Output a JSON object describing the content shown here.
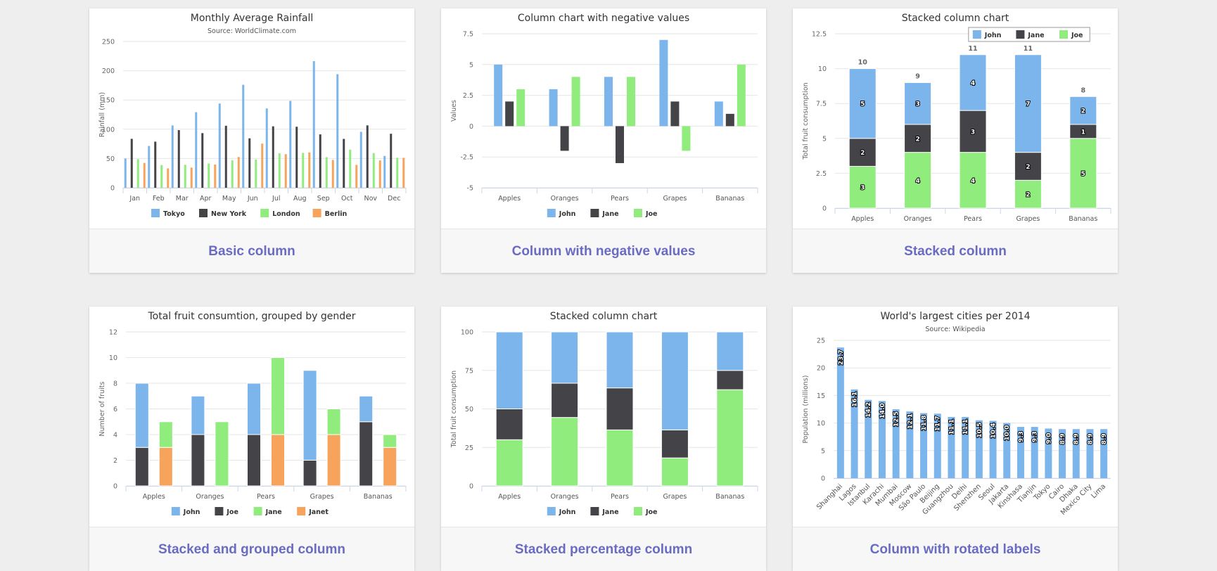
{
  "colors": {
    "blue": "#7cb5ec",
    "dark": "#434348",
    "green": "#90ed7d",
    "orange": "#f7a35c",
    "caption": "#6a6bc2"
  },
  "cards": [
    {
      "caption": "Basic column",
      "chart_data": {
        "type": "bar",
        "title": "Monthly Average Rainfall",
        "subtitle": "Source: WorldClimate.com",
        "ylabel": "Rainfall (mm)",
        "ylim": [
          0,
          250
        ],
        "yticks": [
          "0",
          "50",
          "100",
          "150",
          "200",
          "250"
        ],
        "categories": [
          "Jan",
          "Feb",
          "Mar",
          "Apr",
          "May",
          "Jun",
          "Jul",
          "Aug",
          "Sep",
          "Oct",
          "Nov",
          "Dec"
        ],
        "legend": "bottom-center",
        "series": [
          {
            "name": "Tokyo",
            "color": "#7cb5ec",
            "values": [
              49.9,
              71.5,
              106.4,
              129.2,
              144.0,
              176.0,
              135.6,
              148.5,
              216.4,
              194.1,
              95.6,
              54.4
            ]
          },
          {
            "name": "New York",
            "color": "#434348",
            "values": [
              83.6,
              78.8,
              98.5,
              93.4,
              106.0,
              84.5,
              105.0,
              104.3,
              91.2,
              83.5,
              106.6,
              92.3
            ]
          },
          {
            "name": "London",
            "color": "#90ed7d",
            "values": [
              48.9,
              38.8,
              39.3,
              41.4,
              47.0,
              48.3,
              59.0,
              59.6,
              52.4,
              65.2,
              59.3,
              51.2
            ]
          },
          {
            "name": "Berlin",
            "color": "#f7a35c",
            "values": [
              42.4,
              33.2,
              34.5,
              39.7,
              52.6,
              75.5,
              57.4,
              60.4,
              47.6,
              39.1,
              46.8,
              51.1
            ]
          }
        ]
      }
    },
    {
      "caption": "Column with negative values",
      "chart_data": {
        "type": "bar",
        "title": "Column chart with negative values",
        "ylabel": "Values",
        "ylim": [
          -5,
          7.5
        ],
        "yticks": [
          "-5",
          "-2.5",
          "0",
          "2.5",
          "5",
          "7.5"
        ],
        "categories": [
          "Apples",
          "Oranges",
          "Pears",
          "Grapes",
          "Bananas"
        ],
        "legend": "bottom-center",
        "series": [
          {
            "name": "John",
            "color": "#7cb5ec",
            "values": [
              5,
              3,
              4,
              7,
              2
            ]
          },
          {
            "name": "Jane",
            "color": "#434348",
            "values": [
              2,
              -2,
              -3,
              2,
              1
            ]
          },
          {
            "name": "Joe",
            "color": "#90ed7d",
            "values": [
              3,
              4,
              4,
              -2,
              5
            ]
          }
        ]
      }
    },
    {
      "caption": "Stacked column",
      "chart_data": {
        "type": "bar",
        "stacking": "normal",
        "title": "Stacked column chart",
        "ylabel": "Total fruit consumption",
        "ylim": [
          0,
          12.5
        ],
        "yticks": [
          "0",
          "2.5",
          "5",
          "7.5",
          "10",
          "12.5"
        ],
        "categories": [
          "Apples",
          "Oranges",
          "Pears",
          "Grapes",
          "Bananas"
        ],
        "totals": [
          "10",
          "9",
          "11",
          "11",
          "8"
        ],
        "legend": "top-right",
        "series": [
          {
            "name": "John",
            "color": "#7cb5ec",
            "values": [
              5,
              3,
              4,
              7,
              2
            ]
          },
          {
            "name": "Jane",
            "color": "#434348",
            "values": [
              2,
              2,
              3,
              2,
              1
            ]
          },
          {
            "name": "Joe",
            "color": "#90ed7d",
            "values": [
              3,
              4,
              4,
              2,
              5
            ]
          }
        ]
      }
    },
    {
      "caption": "Stacked and grouped column",
      "chart_data": {
        "type": "bar",
        "stacking": "normal-grouped",
        "title": "Total fruit consumtion, grouped by gender",
        "ylabel": "Number of fruits",
        "ylim": [
          0,
          12
        ],
        "yticks": [
          "0",
          "2",
          "4",
          "6",
          "8",
          "10",
          "12"
        ],
        "categories": [
          "Apples",
          "Oranges",
          "Pears",
          "Grapes",
          "Bananas"
        ],
        "legend": "bottom-center",
        "series": [
          {
            "name": "John",
            "color": "#7cb5ec",
            "stack": "male",
            "values": [
              5,
              3,
              4,
              7,
              2
            ]
          },
          {
            "name": "Joe",
            "color": "#434348",
            "stack": "male",
            "values": [
              3,
              4,
              4,
              2,
              5
            ]
          },
          {
            "name": "Jane",
            "color": "#90ed7d",
            "stack": "female",
            "values": [
              2,
              5,
              6,
              2,
              1
            ]
          },
          {
            "name": "Janet",
            "color": "#f7a35c",
            "stack": "female",
            "values": [
              3,
              0,
              4,
              4,
              3
            ]
          }
        ]
      }
    },
    {
      "caption": "Stacked percentage column",
      "chart_data": {
        "type": "bar",
        "stacking": "percent",
        "title": "Stacked column chart",
        "ylabel": "Total fruit consumption",
        "ylim": [
          0,
          100
        ],
        "yticks": [
          "0",
          "25",
          "50",
          "75",
          "100"
        ],
        "categories": [
          "Apples",
          "Oranges",
          "Pears",
          "Grapes",
          "Bananas"
        ],
        "legend": "bottom-center",
        "series": [
          {
            "name": "John",
            "color": "#7cb5ec",
            "values": [
              5,
              3,
              4,
              7,
              2
            ]
          },
          {
            "name": "Jane",
            "color": "#434348",
            "values": [
              2,
              2,
              3,
              2,
              1
            ]
          },
          {
            "name": "Joe",
            "color": "#90ed7d",
            "values": [
              3,
              4,
              4,
              2,
              5
            ]
          }
        ]
      }
    },
    {
      "caption": "Column with rotated labels",
      "chart_data": {
        "type": "bar",
        "title": "World's largest cities per 2014",
        "subtitle": "Source: Wikipedia",
        "ylabel": "Population (millions)",
        "ylim": [
          0,
          25
        ],
        "yticks": [
          "0",
          "5",
          "10",
          "15",
          "20",
          "25"
        ],
        "categories": [
          "Shanghai",
          "Lagos",
          "Istanbul",
          "Karachi",
          "Mumbai",
          "Moscow",
          "São Paulo",
          "Beijing",
          "Guangzhou",
          "Delhi",
          "Shenzhen",
          "Seoul",
          "Jakarta",
          "Kinshasa",
          "Tianjin",
          "Tokyo",
          "Cairo",
          "Dhaka",
          "Mexico City",
          "Lima"
        ],
        "series": [
          {
            "name": "Population",
            "color": "#7cb5ec",
            "values": [
              23.7,
              16.1,
              14.2,
              14.0,
              12.5,
              12.1,
              11.8,
              11.7,
              11.1,
              11.1,
              10.5,
              10.4,
              10.0,
              9.3,
              9.3,
              9.0,
              8.9,
              8.9,
              8.9,
              8.9
            ],
            "labels": [
              "23.7",
              "16.1",
              "14.2",
              "14.0",
              "12.5",
              "12.1",
              "11.8",
              "11.7",
              "11.1",
              "11.1",
              "10.5",
              "10.4",
              "10.0",
              "9.3",
              "9.3",
              "9.0",
              "8.9",
              "8.9",
              "8.9",
              "8.9"
            ]
          }
        ]
      }
    }
  ]
}
